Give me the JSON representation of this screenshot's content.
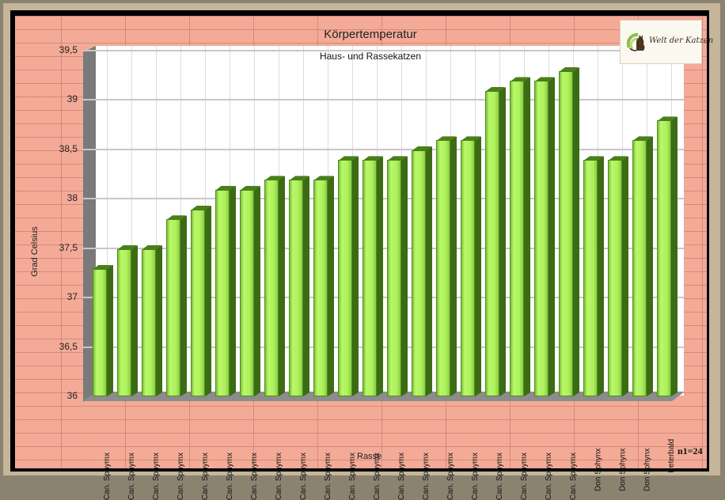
{
  "chart_data": {
    "type": "bar",
    "title": "Körpertemperatur",
    "subtitle": "Haus- und Rassekatzen",
    "xlabel": "Rasse",
    "ylabel": "Grad Celsius",
    "ylim": [
      36,
      39.5
    ],
    "yticks": [
      "36",
      "36,5",
      "37",
      "37,5",
      "38",
      "38,5",
      "39",
      "39,5"
    ],
    "grid": true,
    "legend": "none",
    "annotation": "n1=24",
    "categories": [
      "Can. Sphymx",
      "Can. Sphymx",
      "Can. Sphymx",
      "Can. Sphymx",
      "Can. Sphymx",
      "Can. Sphymx",
      "Can. Sphymx",
      "Can. Sphymx",
      "Can. Sphymx",
      "Can. Sphymx",
      "Can. Sphymx",
      "Can. Sphymx",
      "Can. Sphymx",
      "Can. Sphymx",
      "Can. Sphymx",
      "Can. Sphymx",
      "Can. Sphymx",
      "Can. Sphymx",
      "Can. Sphymx",
      "Can. Sphymx",
      "Don Sphynx",
      "Don Sphynx",
      "Don Sphynx",
      "Peterbald"
    ],
    "values": [
      37.3,
      37.5,
      37.5,
      37.8,
      37.9,
      38.1,
      38.1,
      38.2,
      38.2,
      38.2,
      38.4,
      38.4,
      38.4,
      38.5,
      38.6,
      38.6,
      39.1,
      39.2,
      39.2,
      39.3,
      38.4,
      38.4,
      38.6,
      38.8
    ],
    "colors": {
      "bar_face": "#b0f060",
      "bar_side": "#3c6b15",
      "background": "#f3ab98",
      "plot_background": "#ffffff"
    }
  },
  "logo": {
    "text": "Welt der Katzen"
  }
}
